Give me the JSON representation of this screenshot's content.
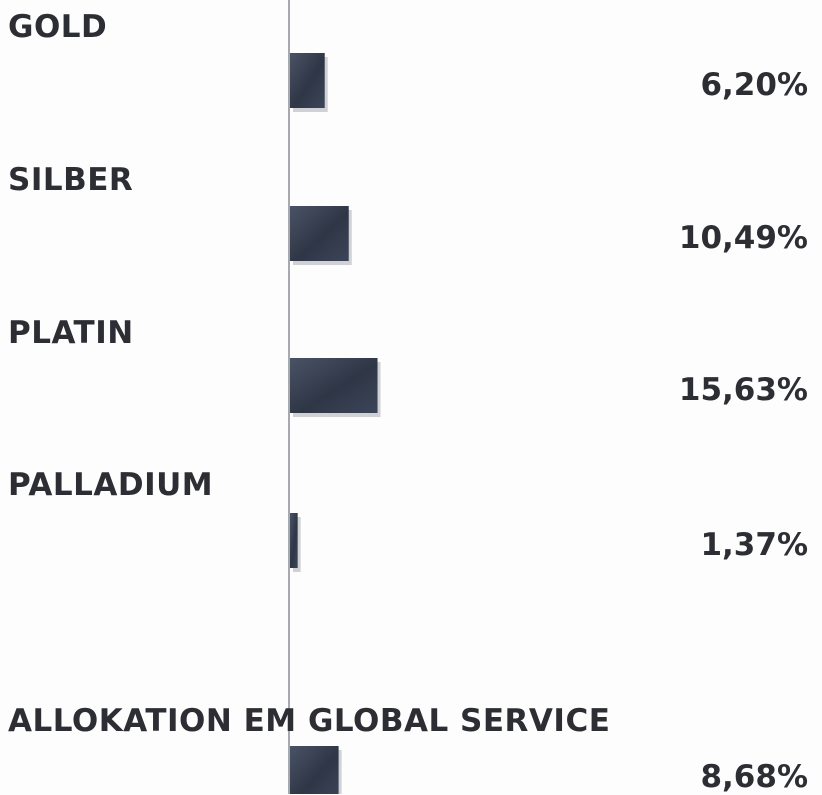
{
  "chart_data": {
    "type": "bar",
    "orientation": "horizontal",
    "categories": [
      "GOLD",
      "SILBER",
      "PLATIN",
      "PALLADIUM",
      "ALLOKATION EM GLOBAL SERVICE"
    ],
    "value_labels": [
      "6,20%",
      "10,49%",
      "15,63%",
      "1,37%",
      "8,68%"
    ],
    "values": [
      6.2,
      10.49,
      15.63,
      1.37,
      8.68
    ],
    "unit": "%",
    "title": "",
    "xlabel": "",
    "ylabel": "",
    "grid": false,
    "colors": {
      "bar": "#3b4354",
      "bar_shadow": "#a9adb4",
      "axis": "#8a8d94",
      "text": "#2d2e34"
    }
  }
}
